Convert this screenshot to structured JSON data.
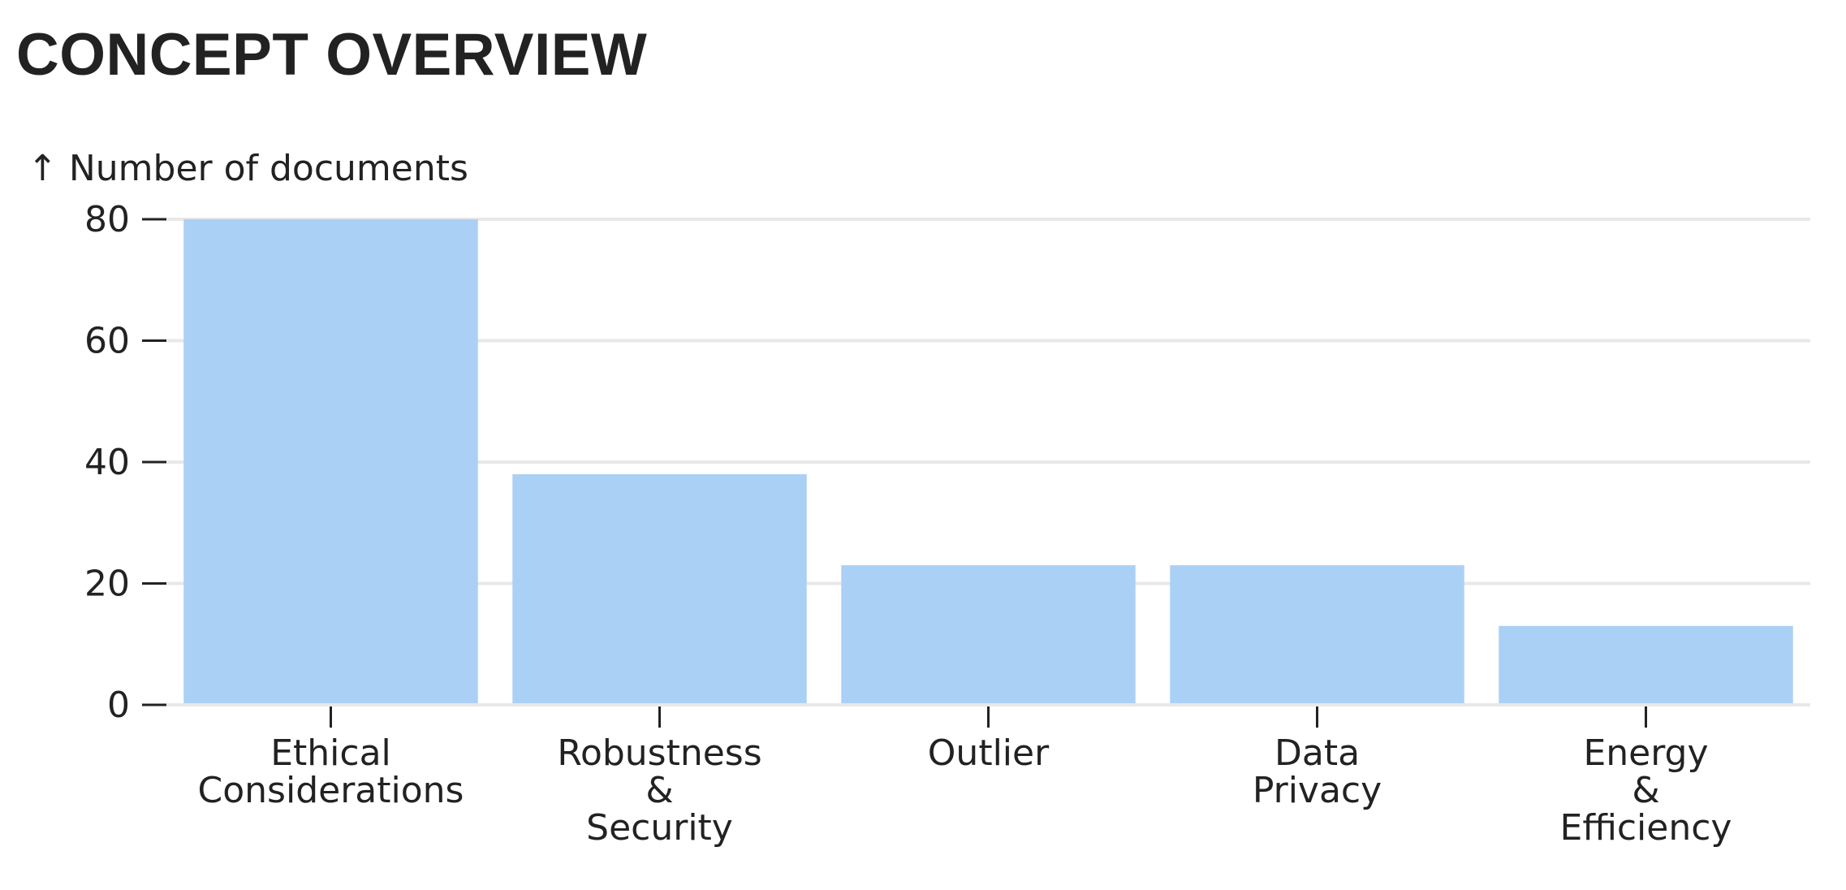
{
  "page": {
    "title": "CONCEPT OVERVIEW"
  },
  "chart_data": {
    "type": "bar",
    "title": "",
    "ylabel": "↑ Number of documents",
    "xlabel": "",
    "categories": [
      [
        "Ethical",
        "Considerations"
      ],
      [
        "Robustness",
        "&",
        "Security"
      ],
      [
        "Outlier"
      ],
      [
        "Data",
        "Privacy"
      ],
      [
        "Energy",
        "&",
        "Efficiency"
      ]
    ],
    "values": [
      80,
      38,
      23,
      23,
      13
    ],
    "ylim": [
      0,
      80
    ],
    "yticks": [
      "0",
      "20",
      "40",
      "60",
      "80"
    ],
    "grid": true,
    "legend": "none",
    "colors": {
      "bar": "#abd0f5",
      "grid": "#e8e8e8",
      "text": "#222222"
    }
  }
}
